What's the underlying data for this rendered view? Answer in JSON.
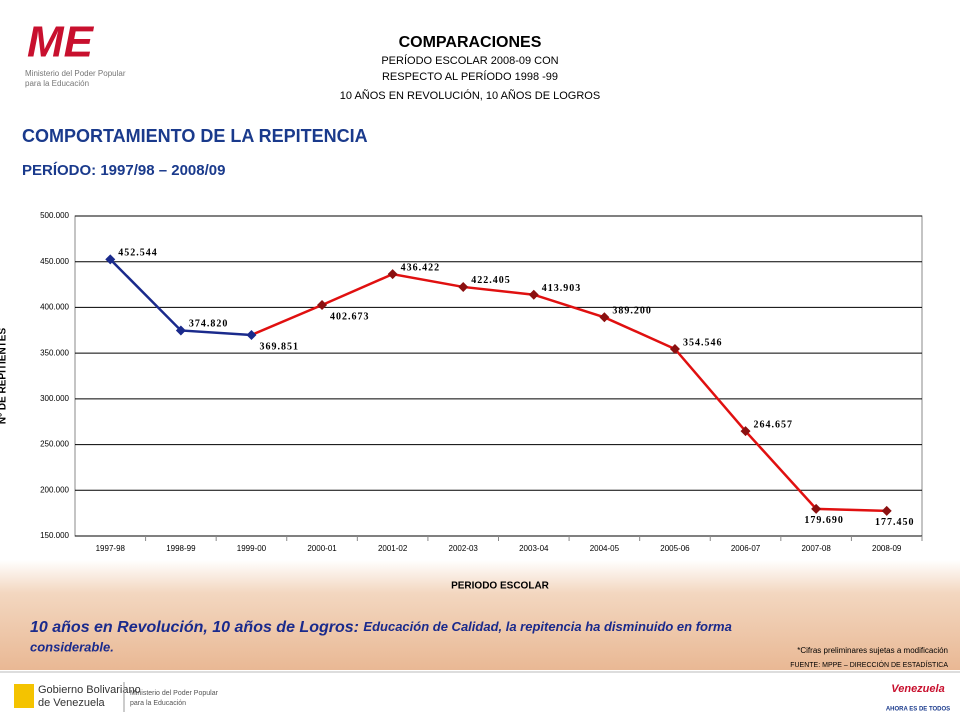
{
  "header": {
    "logo": "ME",
    "ministry": "Ministerio del Poder Popular",
    "ministry_2": "para la Educación",
    "title": "COMPARACIONES",
    "line_1": "PERÍODO ESCOLAR 2008-09 CON",
    "line_2": "RESPECTO AL PERÍODO 1998 -99",
    "line_3": "10 AÑOS EN REVOLUCIÓN, 10 AÑOS DE LOGROS"
  },
  "chart_data": {
    "type": "line",
    "title": "COMPORTAMIENTO DE LA REPITENCIA",
    "subtitle": "PERÍODO: 1997/98 – 2008/09",
    "x_label": "PERIODO ESCOLAR",
    "y_label": "N° DE REPITIENTES",
    "categories": [
      "1997-98",
      "1998-99",
      "1999-00",
      "2000-01",
      "2001-02",
      "2002-03",
      "2003-04",
      "2004-05",
      "2005-06",
      "2006-07",
      "2007-08",
      "2008-09"
    ],
    "values": [
      452544,
      374820,
      369851,
      402673,
      436422,
      422405,
      413903,
      389200,
      354546,
      264657,
      179690,
      177450
    ],
    "value_labels": [
      "452.544",
      "374.820",
      "369.851",
      "402.673",
      "436.422",
      "422.405",
      "413.903",
      "389.200",
      "354.546",
      "264.657",
      "179.690",
      "177.450"
    ],
    "point_colors": [
      "#1a2a8c",
      "#1a2a8c",
      "#1a2a8c",
      "#e01010",
      "#e01010",
      "#e01010",
      "#e01010",
      "#e01010",
      "#e01010",
      "#e01010",
      "#e01010",
      "#e01010"
    ],
    "ylim": [
      150000,
      500000
    ],
    "yticks": [
      {
        "value": 150000,
        "label": "150.000"
      },
      {
        "value": 200000,
        "label": "200.000"
      },
      {
        "value": 250000,
        "label": "250.000"
      },
      {
        "value": 300000,
        "label": "300.000"
      },
      {
        "value": 350000,
        "label": "350.000"
      },
      {
        "value": 400000,
        "label": "400.000"
      },
      {
        "value": 450000,
        "label": "450.000"
      },
      {
        "value": 500000,
        "label": "500.000"
      }
    ],
    "grid": true
  },
  "message": {
    "lead": "10 años en Revolución, 10 años de Logros:",
    "body": "Educación de Calidad, la repitencia ha disminuido en forma",
    "body_2": "considerable."
  },
  "notes": {
    "note": "*Cifras preliminares sujetas a modificación",
    "source": "FUENTE: MPPE – DIRECCIÓN DE ESTADÍSTICA"
  },
  "footer": {
    "gov": "Gobierno Bolivariano",
    "gov_2": "de Venezuela",
    "min": "Ministerio del Poder Popular",
    "min_2": "para la Educación",
    "brand": "Venezuela",
    "slogan": "AHORA ES DE TODOS"
  }
}
